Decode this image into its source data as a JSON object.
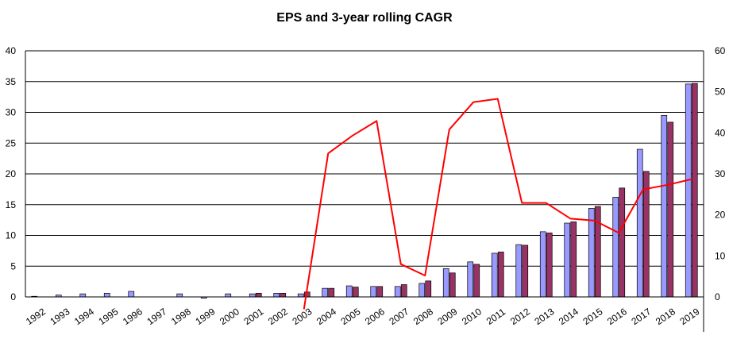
{
  "chart_data": {
    "type": "bar",
    "title": "EPS and 3-year rolling CAGR",
    "categories": [
      "1992",
      "1993",
      "1994",
      "1995",
      "1996",
      "1997",
      "1998",
      "1999",
      "2000",
      "2001",
      "2002",
      "2003",
      "2004",
      "2005",
      "2006",
      "2007",
      "2008",
      "2009",
      "2010",
      "2011",
      "2012",
      "2013",
      "2014",
      "2015",
      "2016",
      "2017",
      "2018",
      "2019"
    ],
    "series": [
      {
        "kind": "bar",
        "axis": "left",
        "color": "#9999ff",
        "values": [
          0.1,
          0.3,
          0.5,
          0.6,
          0.9,
          0.0,
          0.5,
          -0.2,
          0.5,
          0.5,
          0.6,
          0.5,
          1.4,
          1.8,
          1.7,
          1.7,
          2.2,
          4.6,
          5.7,
          7.1,
          8.5,
          10.6,
          12.0,
          14.4,
          16.2,
          24.0,
          29.5,
          34.6
        ]
      },
      {
        "kind": "bar",
        "axis": "left",
        "color": "#993366",
        "values": [
          0.0,
          0.0,
          0.0,
          0.0,
          0.0,
          0.0,
          0.0,
          0.0,
          0.0,
          0.6,
          0.6,
          0.8,
          1.4,
          1.6,
          1.7,
          2.0,
          2.6,
          3.9,
          5.3,
          7.3,
          8.4,
          10.4,
          12.2,
          14.7,
          17.7,
          20.4,
          28.4,
          34.7
        ]
      },
      {
        "kind": "line",
        "axis": "right",
        "color": "#ff0000",
        "values": [
          null,
          null,
          null,
          null,
          null,
          null,
          null,
          null,
          null,
          -3,
          null,
          -3,
          35,
          39.3,
          42.9,
          8,
          5.2,
          40.8,
          47.5,
          48.3,
          22.9,
          22.9,
          19.1,
          18.6,
          15.6,
          26.2,
          27.3,
          28.7
        ]
      }
    ],
    "ylim_left": [
      0,
      40
    ],
    "yticks_left": [
      "0",
      "5",
      "10",
      "15",
      "20",
      "25",
      "30",
      "35",
      "40"
    ],
    "ylim_right": [
      0,
      60
    ],
    "yticks_right": [
      "0",
      "10",
      "20",
      "30",
      "40",
      "50",
      "60"
    ],
    "grid": true,
    "legend": "none"
  }
}
